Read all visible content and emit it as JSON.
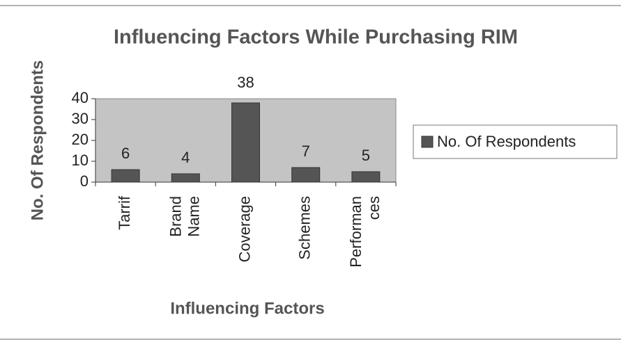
{
  "chart_data": {
    "type": "bar",
    "title": "Influencing Factors While Purchasing RIM",
    "x_label": "Influencing Factors",
    "y_label": "No. Of Respondents",
    "categories": [
      "Tarrif",
      "Brand Name",
      "Coverage",
      "Schemes",
      "Performances"
    ],
    "series": [
      {
        "name": "No. Of Respondents",
        "color": "#555555",
        "values": [
          6,
          4,
          38,
          7,
          5
        ]
      }
    ],
    "ylim": [
      0,
      40
    ],
    "yticks": [
      0,
      10,
      20,
      30,
      40
    ],
    "grid": false,
    "legend": "right"
  }
}
